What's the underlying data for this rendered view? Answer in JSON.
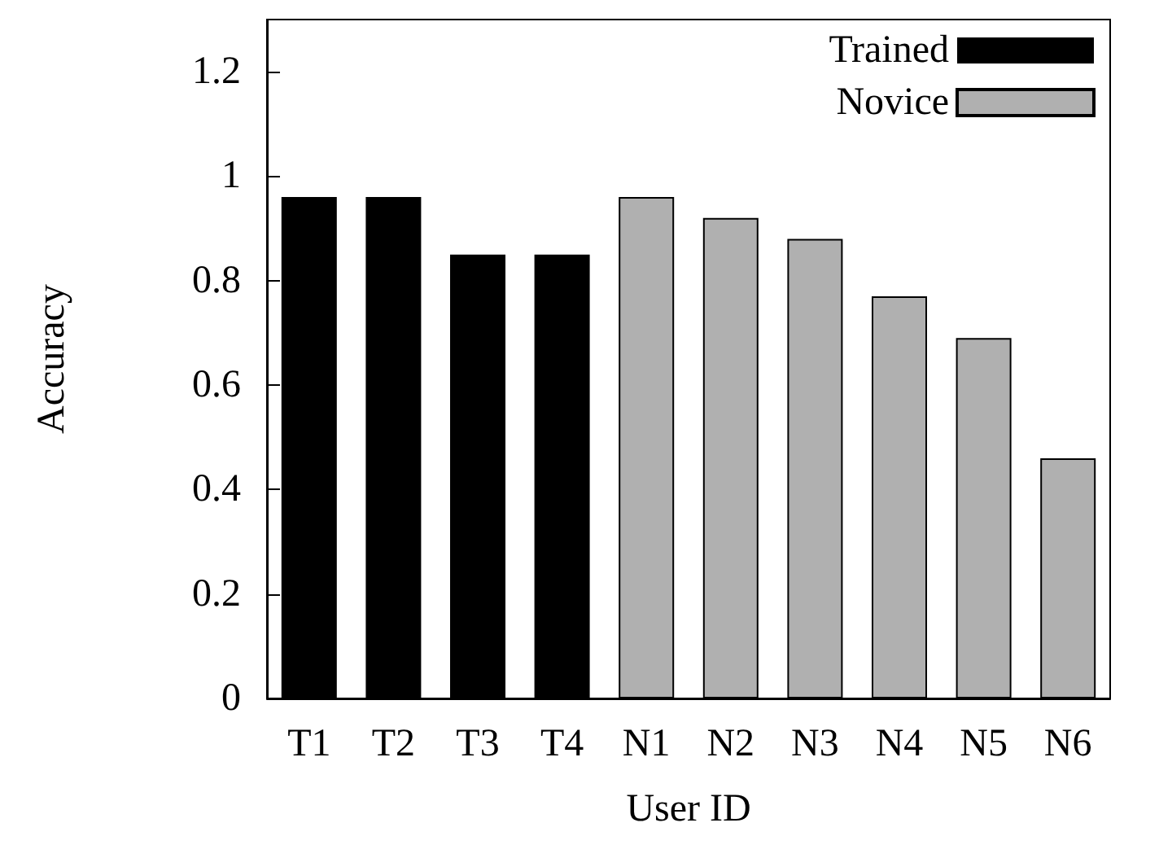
{
  "chart_data": {
    "type": "bar",
    "xlabel": "User ID",
    "ylabel": "Accuracy",
    "categories": [
      "T1",
      "T2",
      "T3",
      "T4",
      "N1",
      "N2",
      "N3",
      "N4",
      "N5",
      "N6"
    ],
    "series": [
      {
        "name": "Trained",
        "color": "#000000",
        "values": [
          0.96,
          0.96,
          0.85,
          0.85,
          null,
          null,
          null,
          null,
          null,
          null
        ]
      },
      {
        "name": "Novice",
        "color": "#b0b0b0",
        "values": [
          null,
          null,
          null,
          null,
          0.96,
          0.92,
          0.88,
          0.77,
          0.69,
          0.46
        ]
      }
    ],
    "ylim": [
      0,
      1.3
    ],
    "yticks": [
      0,
      0.2,
      0.4,
      0.6,
      0.8,
      1,
      1.2
    ],
    "grid": false,
    "legend": "top right"
  }
}
